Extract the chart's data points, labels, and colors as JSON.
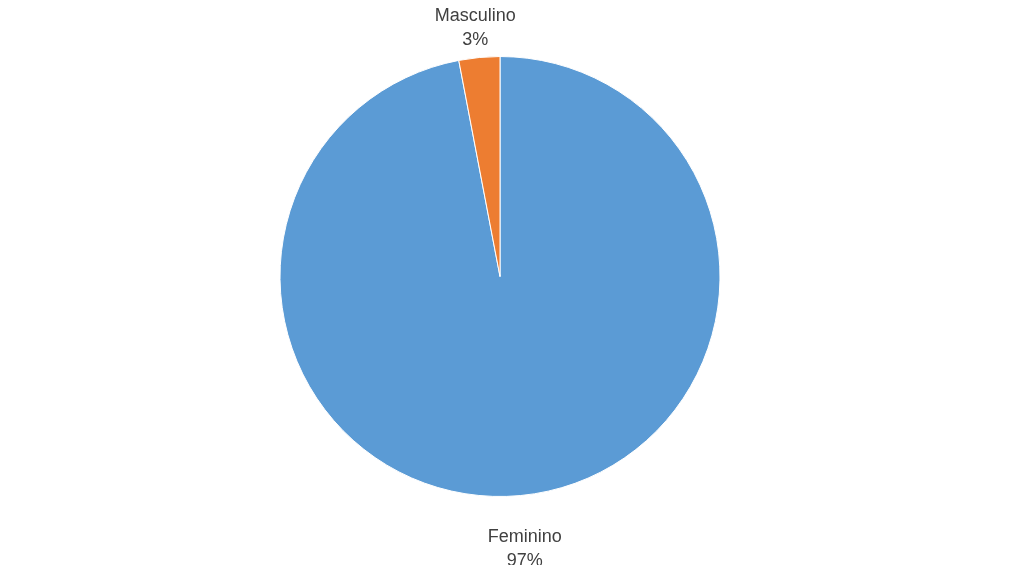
{
  "chart_data": {
    "type": "pie",
    "categories": [
      "Feminino",
      "Masculino"
    ],
    "values": [
      97,
      3
    ],
    "colors": [
      "#5b9bd5",
      "#ed7d31"
    ],
    "value_labels": [
      "97%",
      "3%"
    ],
    "legend": false
  }
}
